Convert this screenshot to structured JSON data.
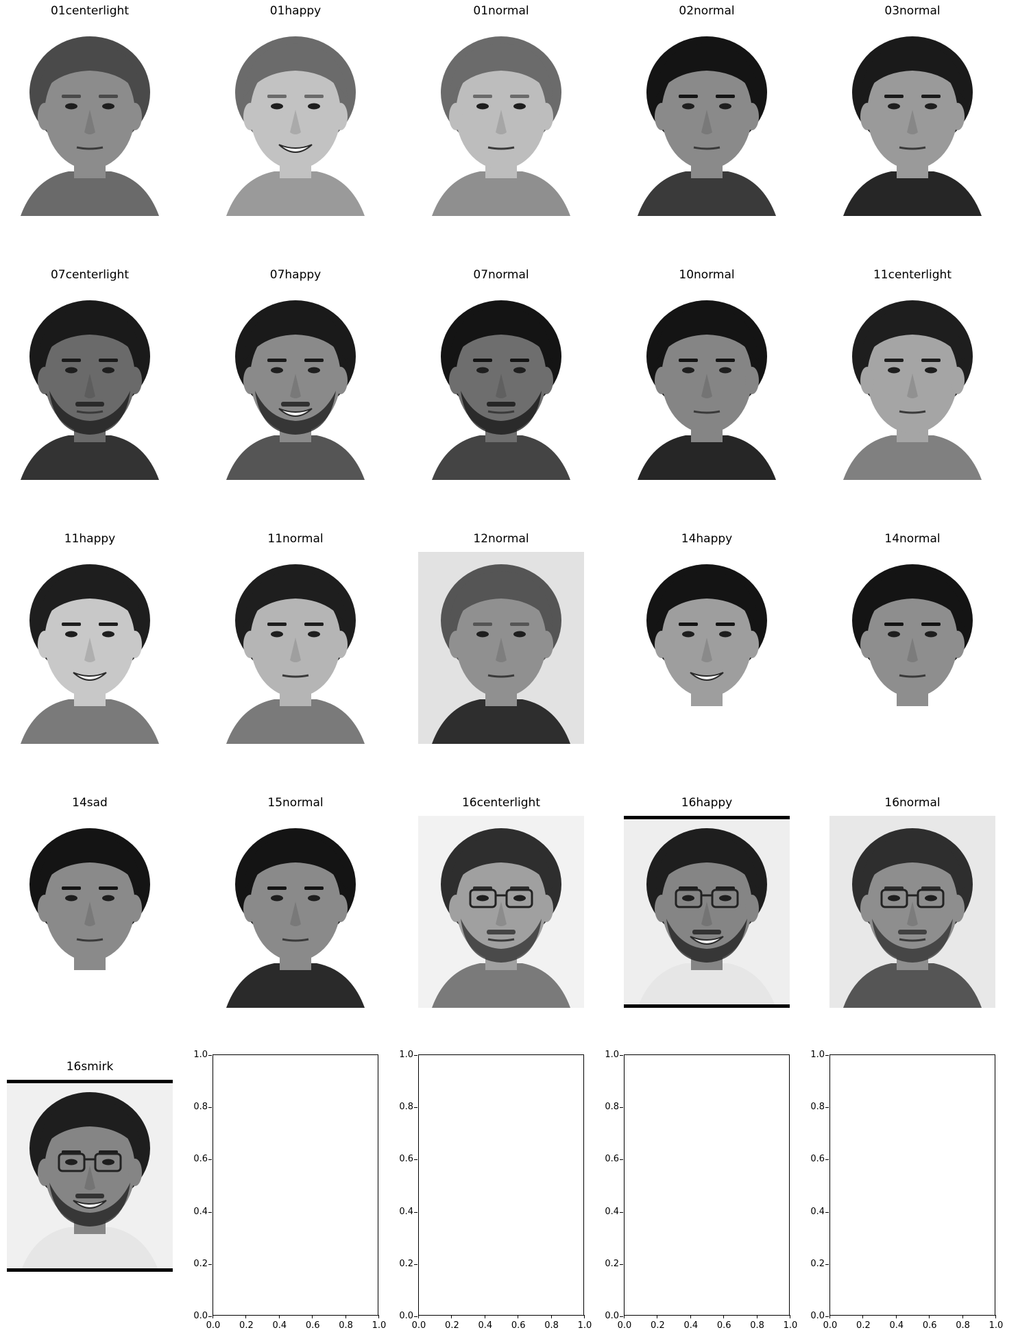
{
  "faces": [
    {
      "label": "01centerlight",
      "hair": "#4a4a4a",
      "skin": "#8c8c8c",
      "shirt": "#6a6a6a",
      "bg": "#ffffff",
      "bars": "none",
      "glasses": false,
      "smile": false,
      "beard": false
    },
    {
      "label": "01happy",
      "hair": "#6b6b6b",
      "skin": "#c2c2c2",
      "shirt": "#9a9a9a",
      "bg": "#ffffff",
      "bars": "none",
      "glasses": false,
      "smile": true,
      "beard": false
    },
    {
      "label": "01normal",
      "hair": "#6b6b6b",
      "skin": "#bdbdbd",
      "shirt": "#8f8f8f",
      "bg": "#ffffff",
      "bars": "none",
      "glasses": false,
      "smile": false,
      "beard": false
    },
    {
      "label": "02normal",
      "hair": "#141414",
      "skin": "#8a8a8a",
      "shirt": "#3a3a3a",
      "bg": "#ffffff",
      "bars": "none",
      "glasses": false,
      "smile": false,
      "beard": false
    },
    {
      "label": "03normal",
      "hair": "#1a1a1a",
      "skin": "#9a9a9a",
      "shirt": "#262626",
      "bg": "#ffffff",
      "bars": "none",
      "glasses": false,
      "smile": false,
      "beard": false
    },
    {
      "label": "07centerlight",
      "hair": "#1a1a1a",
      "skin": "#6a6a6a",
      "shirt": "#333333",
      "bg": "#ffffff",
      "bars": "none",
      "glasses": false,
      "smile": false,
      "beard": true
    },
    {
      "label": "07happy",
      "hair": "#1a1a1a",
      "skin": "#8a8a8a",
      "shirt": "#555555",
      "bg": "#ffffff",
      "bars": "none",
      "glasses": false,
      "smile": true,
      "beard": true
    },
    {
      "label": "07normal",
      "hair": "#141414",
      "skin": "#6e6e6e",
      "shirt": "#444444",
      "bg": "#ffffff",
      "bars": "none",
      "glasses": false,
      "smile": false,
      "beard": true
    },
    {
      "label": "10normal",
      "hair": "#141414",
      "skin": "#858585",
      "shirt": "#262626",
      "bg": "#ffffff",
      "bars": "none",
      "glasses": false,
      "smile": false,
      "beard": false
    },
    {
      "label": "11centerlight",
      "hair": "#1e1e1e",
      "skin": "#a5a5a5",
      "shirt": "#808080",
      "bg": "#ffffff",
      "bars": "none",
      "glasses": false,
      "smile": false,
      "beard": false
    },
    {
      "label": "11happy",
      "hair": "#1e1e1e",
      "skin": "#c8c8c8",
      "shirt": "#7a7a7a",
      "bg": "#ffffff",
      "bars": "none",
      "glasses": false,
      "smile": true,
      "beard": false
    },
    {
      "label": "11normal",
      "hair": "#1e1e1e",
      "skin": "#b5b5b5",
      "shirt": "#7a7a7a",
      "bg": "#ffffff",
      "bars": "none",
      "glasses": false,
      "smile": false,
      "beard": false
    },
    {
      "label": "12normal",
      "hair": "#555555",
      "skin": "#909090",
      "shirt": "#2e2e2e",
      "bg": "#e2e2e2",
      "bars": "none",
      "glasses": false,
      "smile": false,
      "beard": false
    },
    {
      "label": "14happy",
      "hair": "#141414",
      "skin": "#9e9e9e",
      "shirt": "#ffffff",
      "bg": "#ffffff",
      "bars": "none",
      "glasses": false,
      "smile": true,
      "beard": false
    },
    {
      "label": "14normal",
      "hair": "#141414",
      "skin": "#8e8e8e",
      "shirt": "#ffffff",
      "bg": "#ffffff",
      "bars": "none",
      "glasses": false,
      "smile": false,
      "beard": false
    },
    {
      "label": "14sad",
      "hair": "#141414",
      "skin": "#8a8a8a",
      "shirt": "#ffffff",
      "bg": "#ffffff",
      "bars": "none",
      "glasses": false,
      "smile": false,
      "beard": false
    },
    {
      "label": "15normal",
      "hair": "#141414",
      "skin": "#8a8a8a",
      "shirt": "#2a2a2a",
      "bg": "#ffffff",
      "bars": "none",
      "glasses": false,
      "smile": false,
      "beard": false
    },
    {
      "label": "16centerlight",
      "hair": "#2e2e2e",
      "skin": "#a0a0a0",
      "shirt": "#7a7a7a",
      "bg": "#f2f2f2",
      "bars": "none",
      "glasses": true,
      "smile": false,
      "beard": true
    },
    {
      "label": "16happy",
      "hair": "#1e1e1e",
      "skin": "#858585",
      "shirt": "#e6e6e6",
      "bg": "#eeeeee",
      "bars": "both",
      "glasses": true,
      "smile": true,
      "beard": true
    },
    {
      "label": "16normal",
      "hair": "#2e2e2e",
      "skin": "#8e8e8e",
      "shirt": "#555555",
      "bg": "#e8e8e8",
      "bars": "none",
      "glasses": true,
      "smile": false,
      "beard": true
    },
    {
      "label": "16smirk",
      "hair": "#1e1e1e",
      "skin": "#858585",
      "shirt": "#e6e6e6",
      "bg": "#f0f0f0",
      "bars": "both",
      "glasses": true,
      "smile": true,
      "beard": true
    }
  ],
  "empty_axes": {
    "count": 4,
    "yticks": [
      "0.0",
      "0.2",
      "0.4",
      "0.6",
      "0.8",
      "1.0"
    ],
    "xticks": [
      "0.0",
      "0.2",
      "0.4",
      "0.6",
      "0.8",
      "1.0"
    ],
    "xlim": [
      0.0,
      1.0
    ],
    "ylim": [
      0.0,
      1.0
    ]
  }
}
